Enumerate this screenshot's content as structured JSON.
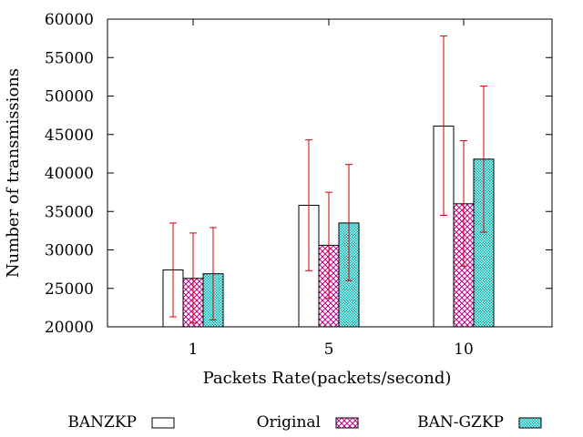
{
  "chart_data": {
    "type": "bar",
    "xlabel": "Packets Rate(packets/second)",
    "ylabel": "Number of transmissions",
    "ylim": [
      20000,
      60000
    ],
    "yticks": [
      20000,
      25000,
      30000,
      35000,
      40000,
      45000,
      50000,
      55000,
      60000
    ],
    "categories": [
      "1",
      "5",
      "10"
    ],
    "grid": false,
    "legend_position": "bottom",
    "series": [
      {
        "name": "BANZKP",
        "pattern": "empty",
        "fill_color": "#ffffff",
        "values": [
          27400,
          35800,
          46100
        ],
        "error_low": [
          21300,
          27300,
          34500
        ],
        "error_high": [
          33500,
          44300,
          57800
        ]
      },
      {
        "name": "Original",
        "pattern": "crosshatch",
        "fill_color": "#c0008a",
        "values": [
          26300,
          30600,
          36000
        ],
        "error_low": [
          20500,
          23700,
          27900
        ],
        "error_high": [
          32200,
          37500,
          44200
        ]
      },
      {
        "name": "BAN-GZKP",
        "pattern": "dotted",
        "fill_color": "#00c8c8",
        "values": [
          26900,
          33500,
          41800
        ],
        "error_low": [
          20900,
          26000,
          32300
        ],
        "error_high": [
          32900,
          41100,
          51300
        ]
      }
    ],
    "error_bar_color": "#d00000"
  }
}
